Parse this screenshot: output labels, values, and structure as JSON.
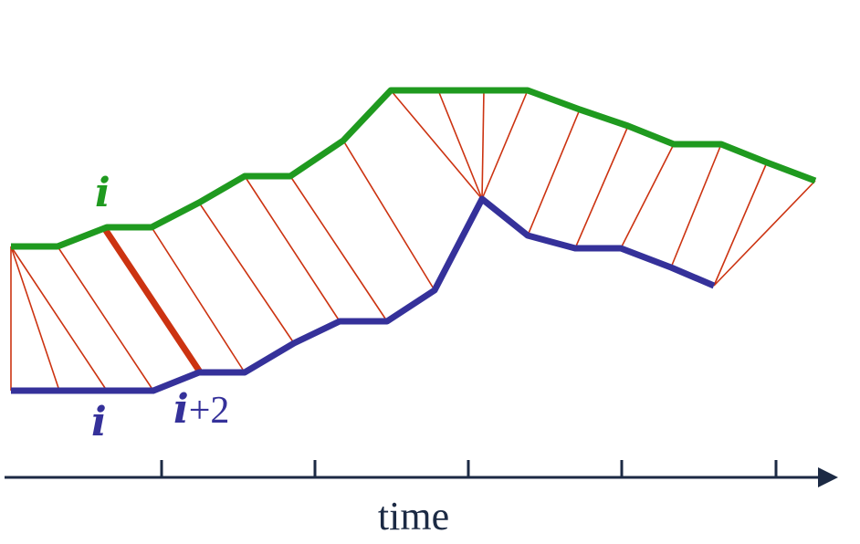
{
  "labels": {
    "upper_series": "i",
    "lower_series": "i",
    "offset_prefix": "i",
    "offset_suffix": "+2",
    "axis": "time"
  },
  "colors": {
    "upper": "#1f9a1f",
    "lower": "#35319a",
    "links": "#cc3311",
    "highlight": "#cc3311",
    "axis": "#1c2a44",
    "text_green": "#1f9a1f",
    "text_blue": "#35319a"
  }
}
